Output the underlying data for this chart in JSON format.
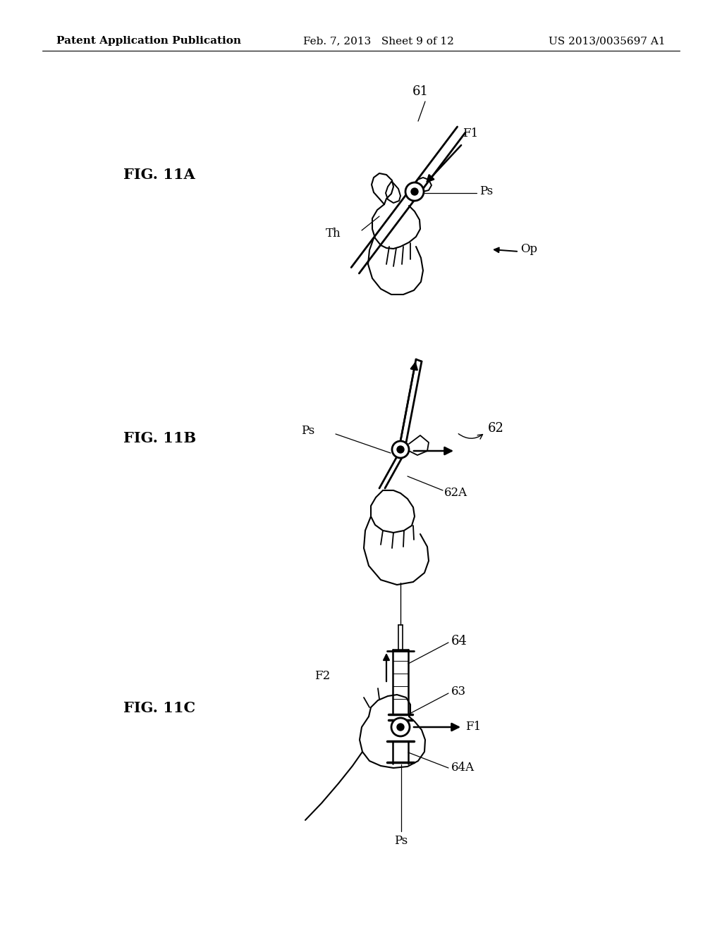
{
  "background_color": "#ffffff",
  "header_left": "Patent Application Publication",
  "header_center": "Feb. 7, 2013   Sheet 9 of 12",
  "header_right": "US 2013/0035697 A1",
  "header_fontsize": 11
}
